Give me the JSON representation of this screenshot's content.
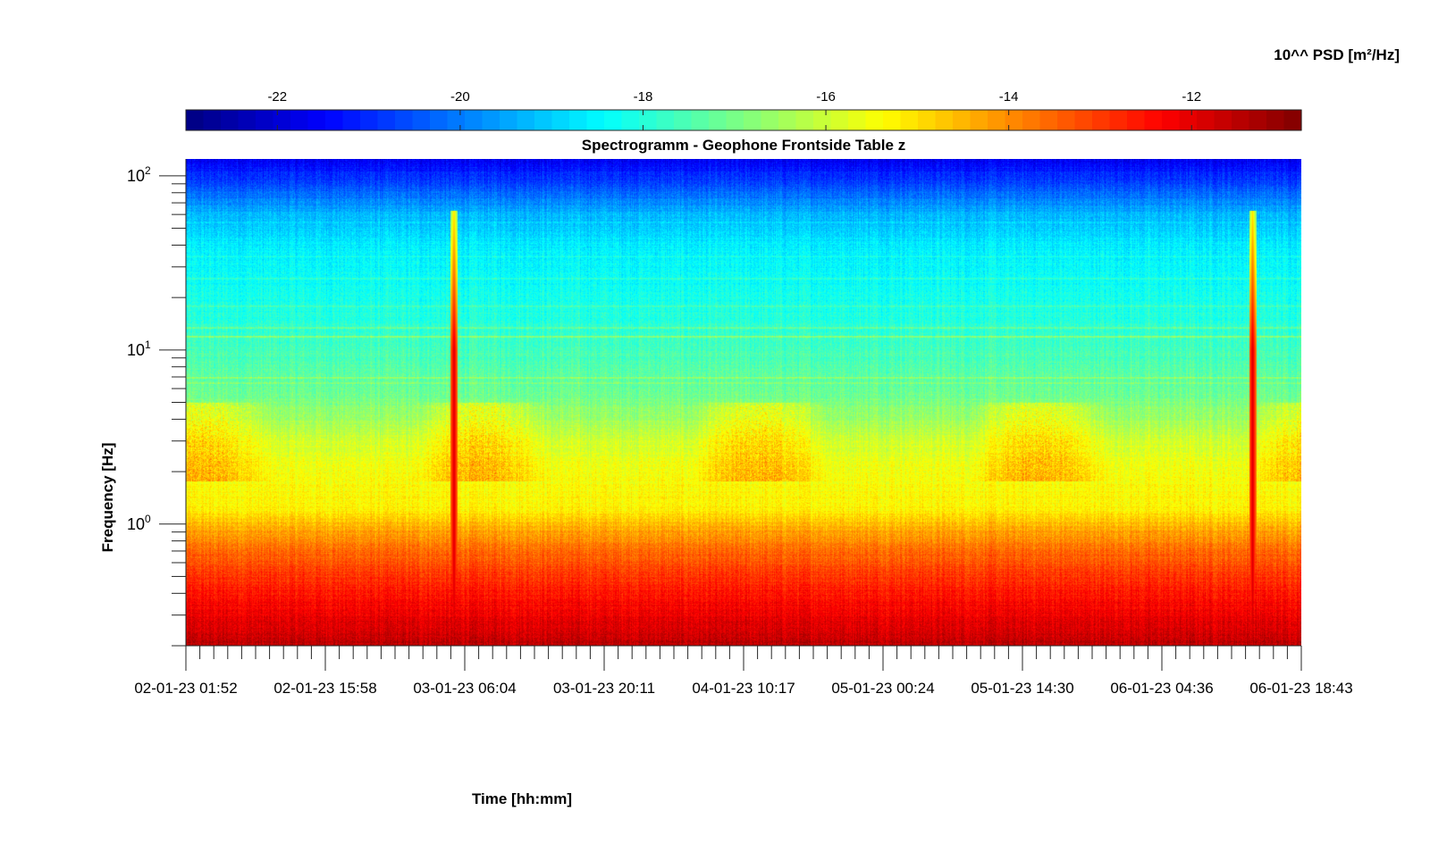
{
  "chart_data": {
    "type": "heatmap",
    "title": "Spectrogramm - Geophone Frontside Table z",
    "xlabel": "Time [hh:mm]",
    "ylabel": "Frequency [Hz]",
    "y_scale": "log",
    "ylim": [
      0.2,
      125
    ],
    "x_ticks": [
      "02-01-23 01:52",
      "02-01-23 15:58",
      "03-01-23 06:04",
      "03-01-23 20:11",
      "04-01-23 10:17",
      "05-01-23 00:24",
      "05-01-23 14:30",
      "06-01-23 04:36",
      "06-01-23 18:43"
    ],
    "y_ticks": [
      {
        "base": "10",
        "exp": "0",
        "value": 1
      },
      {
        "base": "10",
        "exp": "1",
        "value": 10
      },
      {
        "base": "10",
        "exp": "2",
        "value": 100
      }
    ],
    "colorbar": {
      "label": "10^^ PSD [m²/Hz]",
      "range": [
        -23,
        -10.8
      ],
      "ticks": [
        "-22",
        "-20",
        "-18",
        "-16",
        "-14",
        "-12"
      ],
      "tick_values": [
        -22,
        -20,
        -18,
        -16,
        -14,
        -12
      ],
      "colormap": "jet"
    },
    "psd_profile": {
      "description_frequency_hz": [
        0.2,
        0.3,
        0.5,
        0.7,
        0.9,
        1.0,
        1.2,
        2,
        3,
        4,
        6,
        9,
        12,
        20,
        40,
        60,
        90,
        125
      ],
      "log10_psd": [
        -11.5,
        -12.1,
        -12.9,
        -13.6,
        -14.2,
        -14.5,
        -15.2,
        -15.5,
        -15.9,
        -16.5,
        -17.2,
        -17.5,
        -17.8,
        -18.2,
        -18.6,
        -19.3,
        -20.6,
        -21.6
      ]
    },
    "events": [
      {
        "time": "02-01-23 23:40",
        "peak_log10_psd": -11.5
      },
      {
        "time": "06-01-23 14:10",
        "peak_log10_psd": -11.5
      }
    ]
  }
}
